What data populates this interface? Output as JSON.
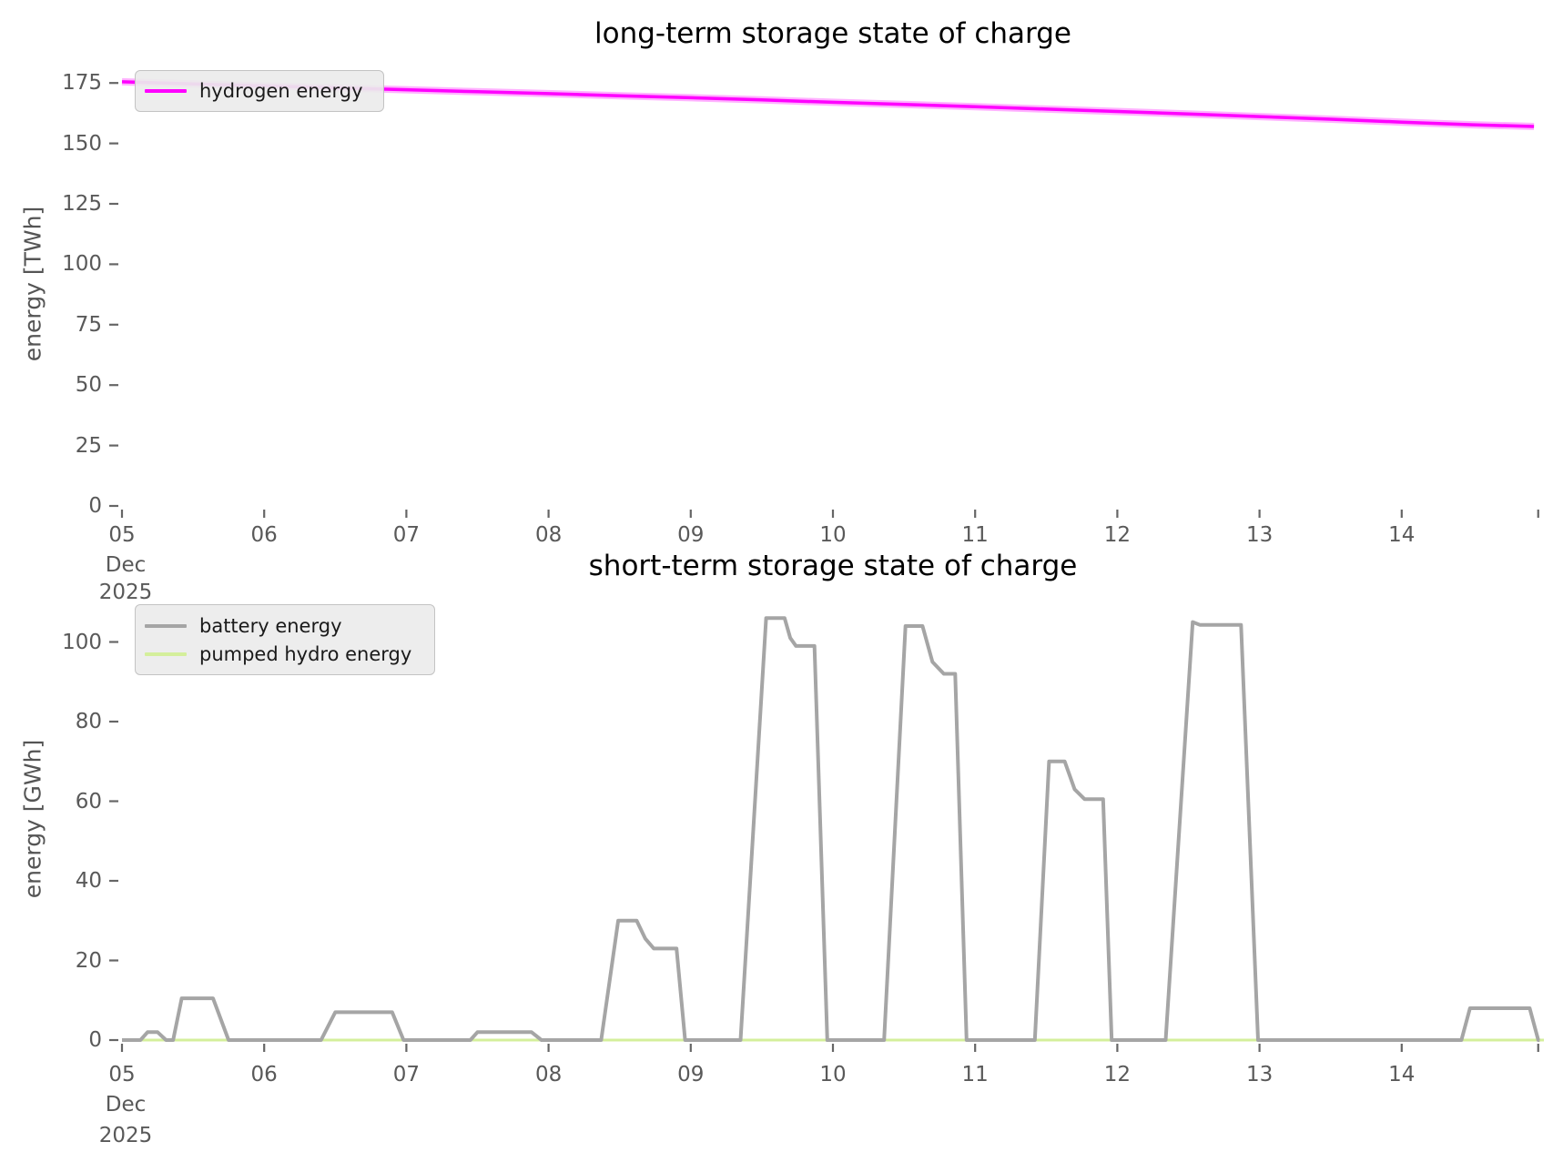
{
  "page": {
    "background": "#ffffff",
    "tick_color": "#595959",
    "title_color": "#000000"
  },
  "chart_data": [
    {
      "type": "line",
      "title": "long-term storage state of charge",
      "xlabel": "",
      "ylabel": "energy [TWh]",
      "x_unit": "days after 2025-12-05 00:00",
      "legend_position": "upper left",
      "grid": false,
      "ylim": [
        0,
        178
      ],
      "xlim_days": [
        0,
        10
      ],
      "x_axis": {
        "ticks": [
          {
            "d": 0,
            "label": "05"
          },
          {
            "d": 1,
            "label": "06"
          },
          {
            "d": 2,
            "label": "07"
          },
          {
            "d": 3,
            "label": "08"
          },
          {
            "d": 4,
            "label": "09"
          },
          {
            "d": 5,
            "label": "10"
          },
          {
            "d": 6,
            "label": "11"
          },
          {
            "d": 7,
            "label": "12"
          },
          {
            "d": 8,
            "label": "13"
          },
          {
            "d": 9,
            "label": "14"
          },
          {
            "d": 9.96,
            "label": ""
          }
        ],
        "first_tick_sublabels": [
          "Dec",
          "2025"
        ]
      },
      "y_axis": {
        "ticks": [
          0,
          25,
          50,
          75,
          100,
          125,
          150,
          175
        ]
      },
      "series": [
        {
          "name": "hydrogen energy",
          "color": "#ff00ff",
          "halo_color": "rgba(255,0,255,0.30)",
          "width": 3.5,
          "halo_width": 8,
          "points": [
            [
              0,
              175.5
            ],
            [
              0.5,
              174.6
            ],
            [
              1,
              173.8
            ],
            [
              1.5,
              173.0
            ],
            [
              2,
              172.2
            ],
            [
              2.5,
              171.4
            ],
            [
              3,
              170.6
            ],
            [
              3.5,
              169.7
            ],
            [
              4,
              168.9
            ],
            [
              4.5,
              168.0
            ],
            [
              5,
              167.0
            ],
            [
              5.5,
              166.1
            ],
            [
              6,
              165.2
            ],
            [
              6.5,
              164.2
            ],
            [
              7,
              163.2
            ],
            [
              7.5,
              162.2
            ],
            [
              8,
              161.1
            ],
            [
              8.5,
              160.0
            ],
            [
              9,
              158.8
            ],
            [
              9.5,
              157.7
            ],
            [
              9.93,
              157.0
            ]
          ]
        }
      ]
    },
    {
      "type": "line",
      "title": "short-term storage state of charge",
      "xlabel": "",
      "ylabel": "energy [GWh]",
      "x_unit": "days after 2025-12-05 00:00",
      "legend_position": "upper left",
      "grid": false,
      "ylim": [
        0,
        110
      ],
      "xlim_days": [
        0,
        10
      ],
      "x_axis": {
        "ticks": [
          {
            "d": 0,
            "label": "05"
          },
          {
            "d": 1,
            "label": "06"
          },
          {
            "d": 2,
            "label": "07"
          },
          {
            "d": 3,
            "label": "08"
          },
          {
            "d": 4,
            "label": "09"
          },
          {
            "d": 5,
            "label": "10"
          },
          {
            "d": 6,
            "label": "11"
          },
          {
            "d": 7,
            "label": "12"
          },
          {
            "d": 8,
            "label": "13"
          },
          {
            "d": 9,
            "label": "14"
          },
          {
            "d": 9.96,
            "label": ""
          }
        ],
        "first_tick_sublabels": [
          "Dec",
          "2025"
        ]
      },
      "y_axis": {
        "ticks": [
          0,
          20,
          40,
          60,
          80,
          100
        ]
      },
      "series": [
        {
          "name": "battery energy",
          "color": "#a5a5a5",
          "width": 4,
          "points": [
            [
              0.0,
              0
            ],
            [
              0.13,
              0
            ],
            [
              0.18,
              2
            ],
            [
              0.25,
              2
            ],
            [
              0.31,
              0
            ],
            [
              0.36,
              0
            ],
            [
              0.42,
              10.5
            ],
            [
              0.64,
              10.5
            ],
            [
              0.75,
              0
            ],
            [
              1.4,
              0
            ],
            [
              1.5,
              7
            ],
            [
              1.9,
              7
            ],
            [
              1.98,
              0
            ],
            [
              2.45,
              0
            ],
            [
              2.5,
              2
            ],
            [
              2.88,
              2
            ],
            [
              2.95,
              0
            ],
            [
              3.37,
              0
            ],
            [
              3.49,
              30
            ],
            [
              3.62,
              30
            ],
            [
              3.68,
              25.5
            ],
            [
              3.74,
              23
            ],
            [
              3.9,
              23
            ],
            [
              3.96,
              0
            ],
            [
              4.35,
              0
            ],
            [
              4.53,
              106
            ],
            [
              4.66,
              106
            ],
            [
              4.7,
              101
            ],
            [
              4.74,
              99
            ],
            [
              4.87,
              99
            ],
            [
              4.96,
              0
            ],
            [
              5.36,
              0
            ],
            [
              5.51,
              104
            ],
            [
              5.63,
              104
            ],
            [
              5.7,
              95
            ],
            [
              5.78,
              92
            ],
            [
              5.86,
              92
            ],
            [
              5.94,
              0
            ],
            [
              6.42,
              0
            ],
            [
              6.52,
              70
            ],
            [
              6.63,
              70
            ],
            [
              6.7,
              63
            ],
            [
              6.77,
              60.5
            ],
            [
              6.9,
              60.5
            ],
            [
              6.96,
              0
            ],
            [
              7.34,
              0
            ],
            [
              7.53,
              105
            ],
            [
              7.58,
              104.3
            ],
            [
              7.87,
              104.3
            ],
            [
              7.99,
              0
            ],
            [
              9.42,
              0
            ],
            [
              9.48,
              8
            ],
            [
              9.9,
              8
            ],
            [
              9.96,
              0
            ],
            [
              9.97,
              0
            ]
          ]
        },
        {
          "name": "pumped hydro energy",
          "color": "#d4ef9b",
          "width": 3,
          "points": [
            [
              0,
              0
            ],
            [
              10.0,
              0
            ]
          ]
        }
      ]
    }
  ]
}
